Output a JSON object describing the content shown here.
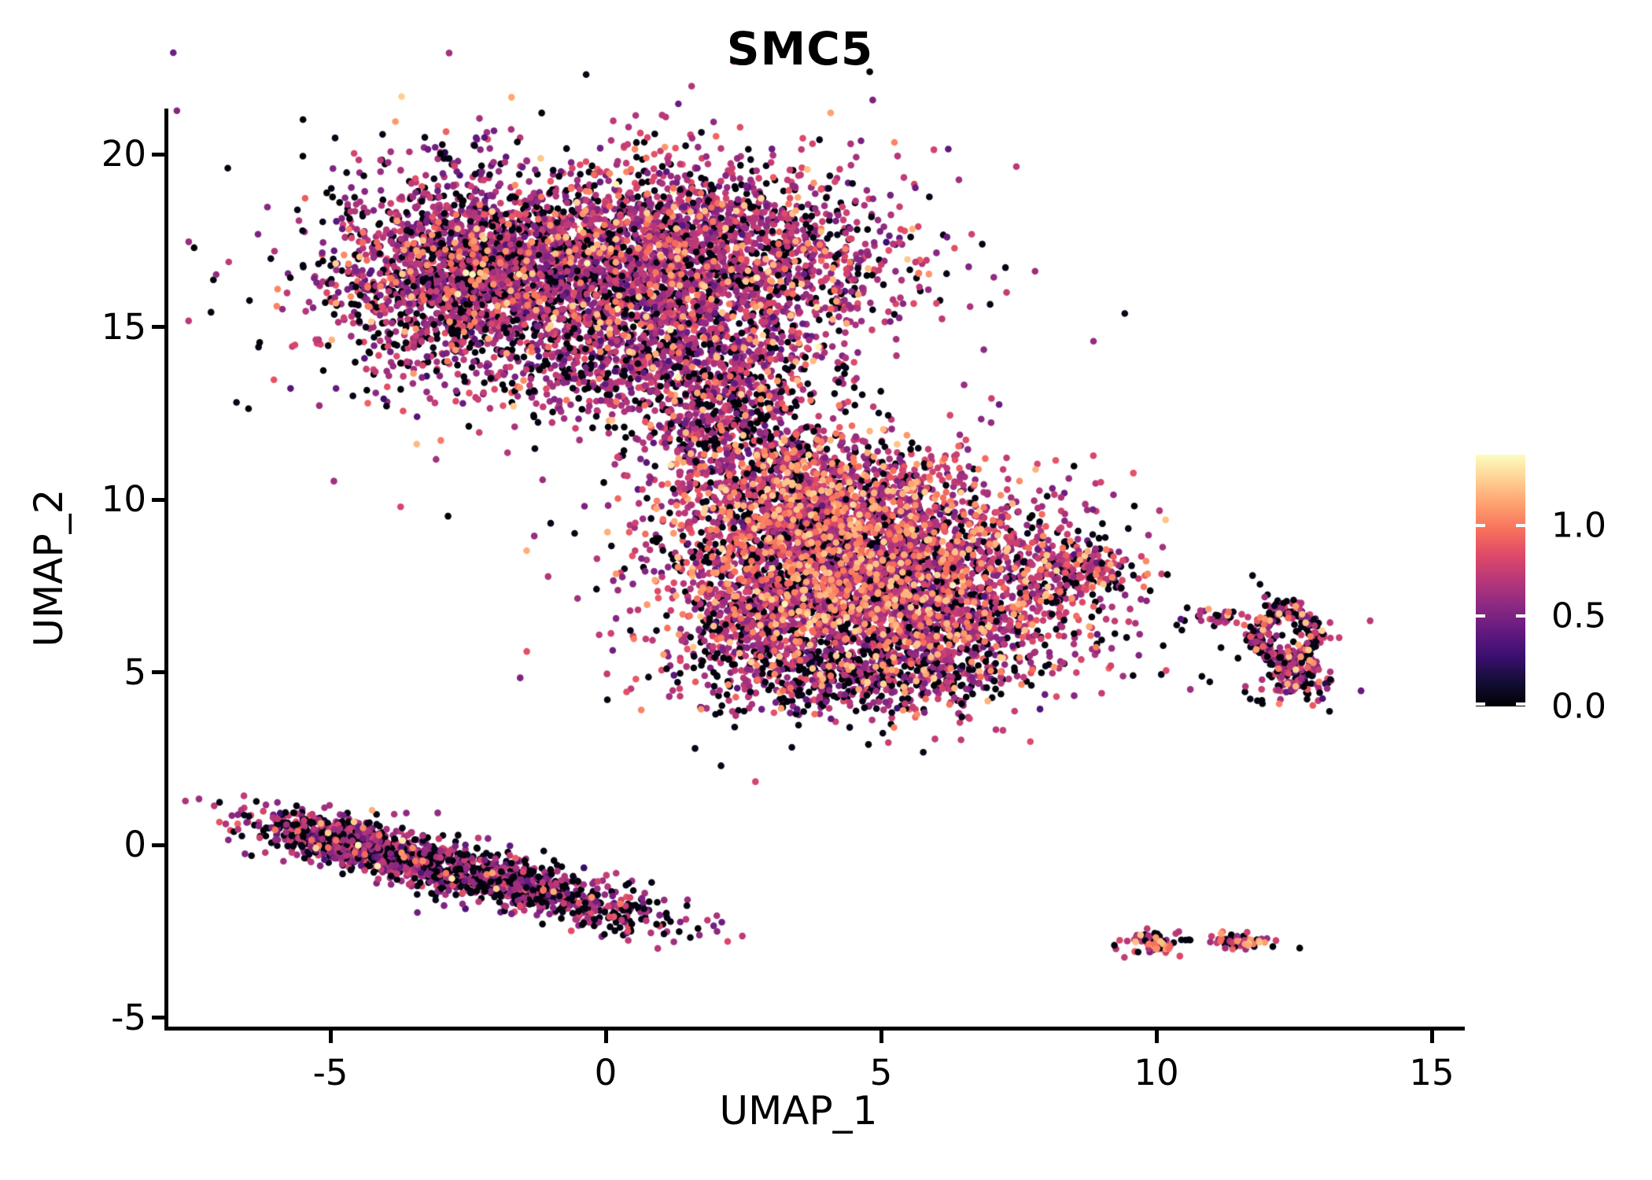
{
  "title": "SMC5",
  "axes": {
    "x_label": "UMAP_1",
    "y_label": "UMAP_2",
    "x_ticks": [
      {
        "label": "-5",
        "value": -5
      },
      {
        "label": "0",
        "value": 0
      },
      {
        "label": "5",
        "value": 5
      },
      {
        "label": "10",
        "value": 10
      },
      {
        "label": "15",
        "value": 15
      }
    ],
    "y_ticks": [
      {
        "label": "-5",
        "value": -5
      },
      {
        "label": "0",
        "value": 0
      },
      {
        "label": "5",
        "value": 5
      },
      {
        "label": "10",
        "value": 10
      },
      {
        "label": "15",
        "value": 15
      },
      {
        "label": "20",
        "value": 20
      }
    ]
  },
  "colorbar": {
    "ticks": [
      {
        "label": "1.0",
        "value": 1.0
      },
      {
        "label": "0.5",
        "value": 0.5
      },
      {
        "label": "0.0",
        "value": 0.0
      }
    ],
    "vmin": 0.0,
    "vmax": 1.4,
    "bar_top_value": 1.39
  },
  "chart_data": {
    "type": "scatter",
    "title": "SMC5",
    "xlabel": "UMAP_1",
    "ylabel": "UMAP_2",
    "xlim": [
      -8.0,
      15.6
    ],
    "ylim": [
      -5.4,
      21.4
    ],
    "x_ticks": [
      -5,
      0,
      5,
      10,
      15
    ],
    "y_ticks": [
      -5,
      0,
      5,
      10,
      15,
      20
    ],
    "grid": false,
    "legend_position": "right-colorbar",
    "color_scale": {
      "vmin": 0.0,
      "vmax": 1.4,
      "tick_values": [
        0.0,
        0.5,
        1.0
      ]
    },
    "colormap": {
      "name": "magma",
      "stops": [
        [
          0.0,
          "#000004"
        ],
        [
          0.1,
          "#140e36"
        ],
        [
          0.2,
          "#3b0f70"
        ],
        [
          0.3,
          "#641a80"
        ],
        [
          0.4,
          "#8c2981"
        ],
        [
          0.5,
          "#b73779"
        ],
        [
          0.6,
          "#de4968"
        ],
        [
          0.7,
          "#f7705c"
        ],
        [
          0.8,
          "#fe9f6d"
        ],
        [
          0.9,
          "#fecf92"
        ],
        [
          1.0,
          "#fcfdbf"
        ]
      ]
    },
    "point_radius_px": 4.3,
    "seed": 1234567,
    "clusters": [
      {
        "name": "top-blob-left-core",
        "cx": -2.4,
        "cy": 16.5,
        "sx": 1.25,
        "sy": 1.35,
        "rot": 0,
        "n": 2000,
        "zero": 0.26,
        "mid": 0.66,
        "sd": 0.14,
        "hi": 0.06
      },
      {
        "name": "top-blob-right-core",
        "cx": 1.4,
        "cy": 17.0,
        "sx": 1.8,
        "sy": 1.35,
        "rot": 0,
        "n": 2400,
        "zero": 0.2,
        "mid": 0.68,
        "sd": 0.13,
        "hi": 0.09
      },
      {
        "name": "top-blob-lower",
        "cx": 1.1,
        "cy": 14.1,
        "sx": 1.5,
        "sy": 1.0,
        "rot": 0,
        "n": 850,
        "zero": 0.24,
        "mid": 0.66,
        "sd": 0.14,
        "hi": 0.07
      },
      {
        "name": "top-blob-halo",
        "cx": -0.6,
        "cy": 16.3,
        "sx": 3.0,
        "sy": 2.2,
        "rot": -8,
        "n": 650,
        "zero": 0.42,
        "mid": 0.62,
        "sd": 0.15,
        "hi": 0.05
      },
      {
        "name": "neck-upper",
        "cx": 2.1,
        "cy": 12.4,
        "sx": 0.75,
        "sy": 0.95,
        "rot": 0,
        "n": 380,
        "zero": 0.28,
        "mid": 0.66,
        "sd": 0.14,
        "hi": 0.07
      },
      {
        "name": "mid-blob-top",
        "cx": 3.9,
        "cy": 9.6,
        "sx": 1.35,
        "sy": 1.05,
        "rot": -10,
        "n": 1500,
        "zero": 0.15,
        "mid": 0.72,
        "sd": 0.13,
        "hi": 0.2
      },
      {
        "name": "mid-blob-core",
        "cx": 5.3,
        "cy": 7.4,
        "sx": 1.7,
        "sy": 1.45,
        "rot": 0,
        "n": 2700,
        "zero": 0.18,
        "mid": 0.7,
        "sd": 0.13,
        "hi": 0.16
      },
      {
        "name": "mid-blob-left",
        "cx": 2.9,
        "cy": 7.0,
        "sx": 0.9,
        "sy": 1.3,
        "rot": 0,
        "n": 700,
        "zero": 0.26,
        "mid": 0.68,
        "sd": 0.14,
        "hi": 0.1
      },
      {
        "name": "mid-blob-bottom-edge",
        "cx": 4.9,
        "cy": 5.0,
        "sx": 1.5,
        "sy": 0.55,
        "rot": 5,
        "n": 550,
        "zero": 0.45,
        "mid": 0.64,
        "sd": 0.14,
        "hi": 0.08
      },
      {
        "name": "mid-blob-halo",
        "cx": 4.6,
        "cy": 8.0,
        "sx": 2.5,
        "sy": 2.0,
        "rot": 0,
        "n": 400,
        "zero": 0.35,
        "mid": 0.66,
        "sd": 0.14,
        "hi": 0.1
      },
      {
        "name": "mid-blob-right-nub",
        "cx": 8.55,
        "cy": 7.9,
        "sx": 0.5,
        "sy": 0.38,
        "rot": -15,
        "n": 140,
        "zero": 0.3,
        "mid": 0.68,
        "sd": 0.14,
        "hi": 0.12
      },
      {
        "name": "neck-lower",
        "cx": 2.9,
        "cy": 11.2,
        "sx": 1.1,
        "sy": 0.75,
        "rot": -20,
        "n": 260,
        "zero": 0.3,
        "mid": 0.66,
        "sd": 0.14,
        "hi": 0.08
      },
      {
        "name": "ring",
        "cx": 12.35,
        "cy": 6.1,
        "shape": "ring",
        "rx": 0.5,
        "ry": 0.72,
        "tx": 0.12,
        "ty": 0.17,
        "n": 220,
        "zero": 0.36,
        "mid": 0.68,
        "sd": 0.14,
        "hi": 0.12
      },
      {
        "name": "ring-bottom-blob",
        "cx": 12.55,
        "cy": 4.95,
        "sx": 0.3,
        "sy": 0.45,
        "rot": 10,
        "n": 150,
        "zero": 0.36,
        "mid": 0.68,
        "sd": 0.14,
        "hi": 0.1
      },
      {
        "name": "ring-left-trail",
        "cx": 11.2,
        "cy": 6.6,
        "sx": 0.3,
        "sy": 0.1,
        "rot": -12,
        "n": 32,
        "zero": 0.3,
        "mid": 0.68,
        "sd": 0.12,
        "hi": 0.12
      },
      {
        "name": "ring-halo",
        "cx": 12.1,
        "cy": 5.9,
        "sx": 0.75,
        "sy": 0.8,
        "rot": 0,
        "n": 40,
        "zero": 0.5,
        "mid": 0.66,
        "sd": 0.14,
        "hi": 0.08
      },
      {
        "name": "band-left",
        "cx": -4.6,
        "cy": 0.05,
        "sx": 1.05,
        "sy": 0.33,
        "rot": -21,
        "n": 750,
        "zero": 0.34,
        "mid": 0.64,
        "sd": 0.13,
        "hi": 0.03
      },
      {
        "name": "band-right",
        "cx": -1.7,
        "cy": -1.15,
        "sx": 1.45,
        "sy": 0.34,
        "rot": -21,
        "n": 850,
        "zero": 0.42,
        "mid": 0.64,
        "sd": 0.13,
        "hi": 0.02
      },
      {
        "name": "band-halo",
        "cx": -3.0,
        "cy": -0.6,
        "sx": 2.2,
        "sy": 0.55,
        "rot": -21,
        "n": 120,
        "zero": 0.5,
        "mid": 0.62,
        "sd": 0.14,
        "hi": 0.02
      },
      {
        "name": "tiny-left",
        "cx": 9.95,
        "cy": -2.85,
        "sx": 0.27,
        "sy": 0.17,
        "rot": -5,
        "n": 75,
        "zero": 0.3,
        "mid": 0.75,
        "sd": 0.12,
        "hi": 0.3
      },
      {
        "name": "tiny-dot",
        "cx": 10.62,
        "cy": -2.8,
        "sx": 0.05,
        "sy": 0.04,
        "rot": 0,
        "n": 2,
        "zero": 1.0,
        "mid": 0.7,
        "sd": 0.1,
        "hi": 0.0
      },
      {
        "name": "tiny-right",
        "cx": 11.5,
        "cy": -2.78,
        "sx": 0.33,
        "sy": 0.1,
        "rot": -6,
        "n": 60,
        "zero": 0.28,
        "mid": 0.75,
        "sd": 0.12,
        "hi": 0.32
      },
      {
        "name": "stray-below-mid",
        "cx": 6.4,
        "cy": 3.75,
        "sx": 0.12,
        "sy": 0.08,
        "rot": 0,
        "n": 2,
        "zero": 0.0,
        "mid": 0.7,
        "sd": 0.05,
        "hi": 0.0
      }
    ]
  }
}
